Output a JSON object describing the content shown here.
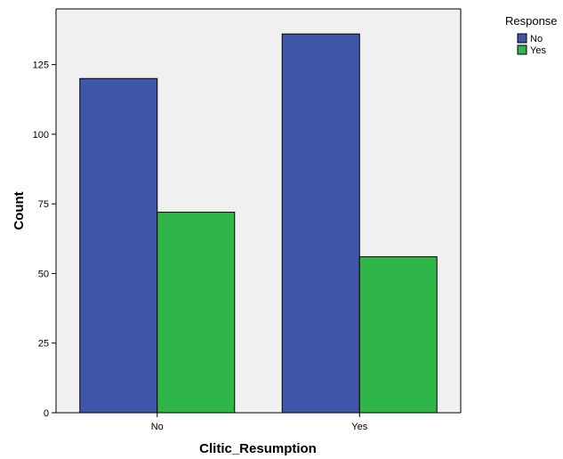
{
  "chart_data": {
    "type": "bar",
    "xlabel": "Clitic_Resumption",
    "ylabel": "Count",
    "categories": [
      "No",
      "Yes"
    ],
    "series": [
      {
        "name": "No",
        "values": [
          120,
          136
        ],
        "color": "#3f56a8"
      },
      {
        "name": "Yes",
        "values": [
          72,
          56
        ],
        "color": "#2fb648"
      }
    ],
    "ylim": [
      0,
      145
    ],
    "yticks": [
      0,
      25,
      50,
      75,
      100,
      125
    ],
    "legend": {
      "title": "Response",
      "placement": "top-right"
    },
    "grid": false,
    "plot_background": "#f0f0f0"
  }
}
